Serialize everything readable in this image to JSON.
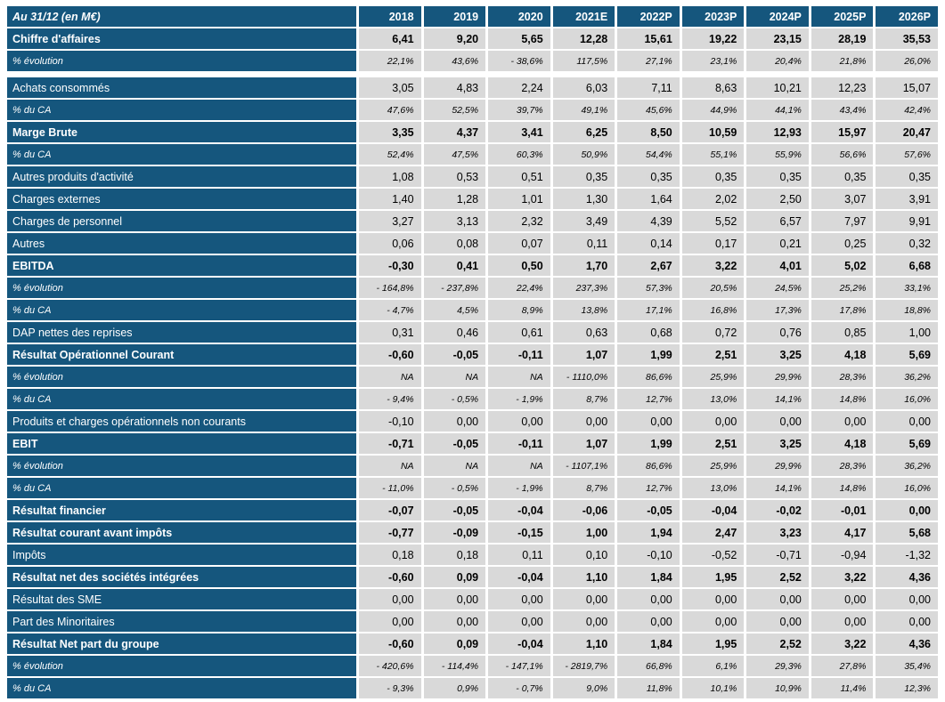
{
  "colors": {
    "header_blue": "#15567D",
    "cell_gray": "#D9D9D9",
    "header_text": "#FFFFFF",
    "value_text": "#000000"
  },
  "chart_data": {
    "type": "table",
    "title": "Au 31/12 (en M€)",
    "columns": [
      "2018",
      "2019",
      "2020",
      "2021E",
      "2022P",
      "2023P",
      "2024P",
      "2025P",
      "2026P"
    ],
    "rows": [
      {
        "label": "Chiffre d'affaires",
        "style": "bold",
        "values": [
          "6,41",
          "9,20",
          "5,65",
          "12,28",
          "15,61",
          "19,22",
          "23,15",
          "28,19",
          "35,53"
        ]
      },
      {
        "label": "% évolution",
        "style": "pct",
        "values": [
          "22,1%",
          "43,6%",
          "- 38,6%",
          "117,5%",
          "27,1%",
          "23,1%",
          "20,4%",
          "21,8%",
          "26,0%"
        ]
      },
      {
        "label": "Achats consommés",
        "style": "regular",
        "gap_before": true,
        "values": [
          "3,05",
          "4,83",
          "2,24",
          "6,03",
          "7,11",
          "8,63",
          "10,21",
          "12,23",
          "15,07"
        ]
      },
      {
        "label": "% du CA",
        "style": "pct",
        "values": [
          "47,6%",
          "52,5%",
          "39,7%",
          "49,1%",
          "45,6%",
          "44,9%",
          "44,1%",
          "43,4%",
          "42,4%"
        ]
      },
      {
        "label": "Marge Brute",
        "style": "bold",
        "values": [
          "3,35",
          "4,37",
          "3,41",
          "6,25",
          "8,50",
          "10,59",
          "12,93",
          "15,97",
          "20,47"
        ]
      },
      {
        "label": "% du CA",
        "style": "pct",
        "values": [
          "52,4%",
          "47,5%",
          "60,3%",
          "50,9%",
          "54,4%",
          "55,1%",
          "55,9%",
          "56,6%",
          "57,6%"
        ]
      },
      {
        "label": "Autres produits d'activité",
        "style": "regular",
        "values": [
          "1,08",
          "0,53",
          "0,51",
          "0,35",
          "0,35",
          "0,35",
          "0,35",
          "0,35",
          "0,35"
        ]
      },
      {
        "label": "Charges externes",
        "style": "regular",
        "values": [
          "1,40",
          "1,28",
          "1,01",
          "1,30",
          "1,64",
          "2,02",
          "2,50",
          "3,07",
          "3,91"
        ]
      },
      {
        "label": "Charges de personnel",
        "style": "regular",
        "values": [
          "3,27",
          "3,13",
          "2,32",
          "3,49",
          "4,39",
          "5,52",
          "6,57",
          "7,97",
          "9,91"
        ]
      },
      {
        "label": "Autres",
        "style": "regular",
        "values": [
          "0,06",
          "0,08",
          "0,07",
          "0,11",
          "0,14",
          "0,17",
          "0,21",
          "0,25",
          "0,32"
        ]
      },
      {
        "label": "EBITDA",
        "style": "bold",
        "values": [
          "-0,30",
          "0,41",
          "0,50",
          "1,70",
          "2,67",
          "3,22",
          "4,01",
          "5,02",
          "6,68"
        ]
      },
      {
        "label": "% évolution",
        "style": "pct",
        "values": [
          "- 164,8%",
          "- 237,8%",
          "22,4%",
          "237,3%",
          "57,3%",
          "20,5%",
          "24,5%",
          "25,2%",
          "33,1%"
        ]
      },
      {
        "label": "% du CA",
        "style": "pct",
        "values": [
          "- 4,7%",
          "4,5%",
          "8,9%",
          "13,8%",
          "17,1%",
          "16,8%",
          "17,3%",
          "17,8%",
          "18,8%"
        ]
      },
      {
        "label": "DAP nettes des reprises",
        "style": "regular",
        "values": [
          "0,31",
          "0,46",
          "0,61",
          "0,63",
          "0,68",
          "0,72",
          "0,76",
          "0,85",
          "1,00"
        ]
      },
      {
        "label": "Résultat Opérationnel Courant",
        "style": "bold",
        "values": [
          "-0,60",
          "-0,05",
          "-0,11",
          "1,07",
          "1,99",
          "2,51",
          "3,25",
          "4,18",
          "5,69"
        ]
      },
      {
        "label": "% évolution",
        "style": "pct",
        "values": [
          "NA",
          "NA",
          "NA",
          "- 1110,0%",
          "86,6%",
          "25,9%",
          "29,9%",
          "28,3%",
          "36,2%"
        ]
      },
      {
        "label": "% du CA",
        "style": "pct",
        "values": [
          "- 9,4%",
          "- 0,5%",
          "- 1,9%",
          "8,7%",
          "12,7%",
          "13,0%",
          "14,1%",
          "14,8%",
          "16,0%"
        ]
      },
      {
        "label": "Produits et charges opérationnels non courants",
        "style": "regular",
        "values": [
          "-0,10",
          "0,00",
          "0,00",
          "0,00",
          "0,00",
          "0,00",
          "0,00",
          "0,00",
          "0,00"
        ]
      },
      {
        "label": "EBIT",
        "style": "bold",
        "values": [
          "-0,71",
          "-0,05",
          "-0,11",
          "1,07",
          "1,99",
          "2,51",
          "3,25",
          "4,18",
          "5,69"
        ]
      },
      {
        "label": "% évolution",
        "style": "pct",
        "values": [
          "NA",
          "NA",
          "NA",
          "- 1107,1%",
          "86,6%",
          "25,9%",
          "29,9%",
          "28,3%",
          "36,2%"
        ]
      },
      {
        "label": "% du CA",
        "style": "pct",
        "values": [
          "- 11,0%",
          "- 0,5%",
          "- 1,9%",
          "8,7%",
          "12,7%",
          "13,0%",
          "14,1%",
          "14,8%",
          "16,0%"
        ]
      },
      {
        "label": "Résultat financier",
        "style": "bold",
        "values": [
          "-0,07",
          "-0,05",
          "-0,04",
          "-0,06",
          "-0,05",
          "-0,04",
          "-0,02",
          "-0,01",
          "0,00"
        ]
      },
      {
        "label": "Résultat courant avant impôts",
        "style": "bold",
        "values": [
          "-0,77",
          "-0,09",
          "-0,15",
          "1,00",
          "1,94",
          "2,47",
          "3,23",
          "4,17",
          "5,68"
        ]
      },
      {
        "label": "Impôts",
        "style": "regular",
        "values": [
          "0,18",
          "0,18",
          "0,11",
          "0,10",
          "-0,10",
          "-0,52",
          "-0,71",
          "-0,94",
          "-1,32"
        ]
      },
      {
        "label": "Résultat net des sociétés intégrées",
        "style": "bold",
        "values": [
          "-0,60",
          "0,09",
          "-0,04",
          "1,10",
          "1,84",
          "1,95",
          "2,52",
          "3,22",
          "4,36"
        ]
      },
      {
        "label": "Résultat des SME",
        "style": "regular",
        "values": [
          "0,00",
          "0,00",
          "0,00",
          "0,00",
          "0,00",
          "0,00",
          "0,00",
          "0,00",
          "0,00"
        ]
      },
      {
        "label": "Part des Minoritaires",
        "style": "regular",
        "values": [
          "0,00",
          "0,00",
          "0,00",
          "0,00",
          "0,00",
          "0,00",
          "0,00",
          "0,00",
          "0,00"
        ]
      },
      {
        "label": "Résultat Net part du groupe",
        "style": "bold",
        "values": [
          "-0,60",
          "0,09",
          "-0,04",
          "1,10",
          "1,84",
          "1,95",
          "2,52",
          "3,22",
          "4,36"
        ]
      },
      {
        "label": "% évolution",
        "style": "pct",
        "values": [
          "- 420,6%",
          "- 114,4%",
          "- 147,1%",
          "- 2819,7%",
          "66,8%",
          "6,1%",
          "29,3%",
          "27,8%",
          "35,4%"
        ]
      },
      {
        "label": "% du CA",
        "style": "pct",
        "values": [
          "- 9,3%",
          "0,9%",
          "- 0,7%",
          "9,0%",
          "11,8%",
          "10,1%",
          "10,9%",
          "11,4%",
          "12,3%"
        ]
      }
    ]
  }
}
